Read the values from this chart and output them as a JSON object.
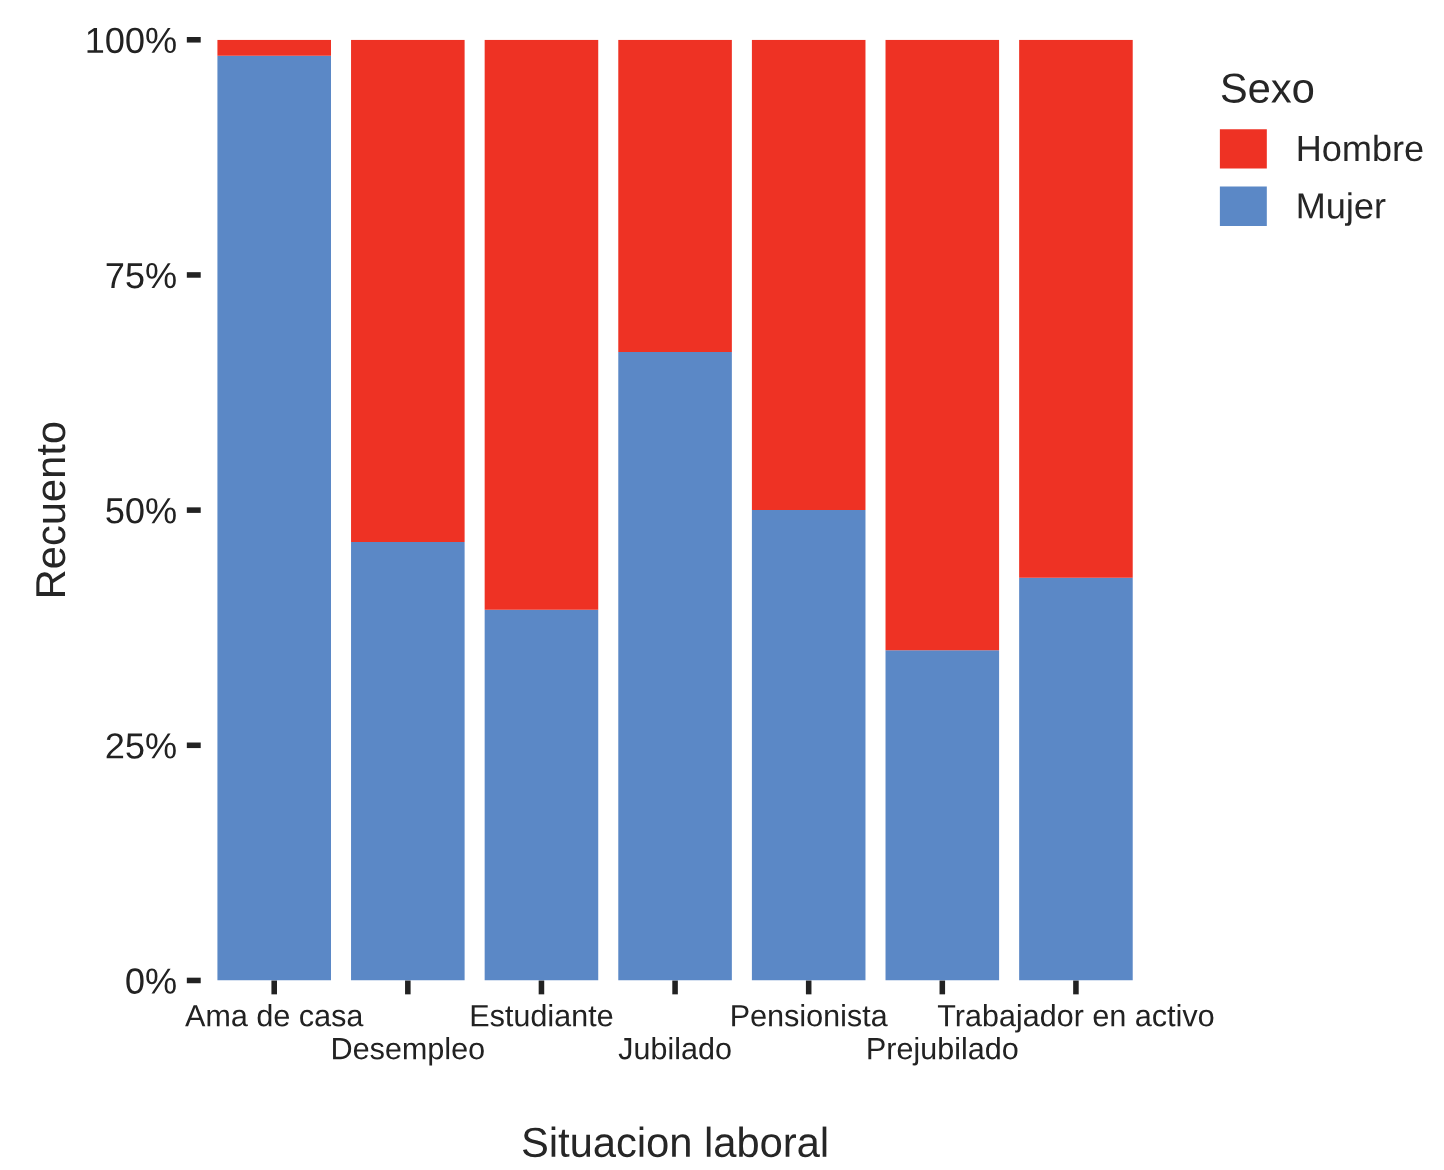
{
  "chart_data": {
    "type": "bar",
    "stacked": true,
    "xlabel": "Situacion laboral",
    "ylabel": "Recuento",
    "legend_title": "Sexo",
    "legend": "right",
    "categories": [
      "Ama de casa",
      "Desempleo",
      "Estudiante",
      "Jubilado",
      "Pensionista",
      "Prejubilado",
      "Trabajador en activo"
    ],
    "series": [
      {
        "name": "Mujer",
        "color": "#5b88c6",
        "values": [
          98.3,
          46.6,
          39.4,
          66.8,
          50,
          35.1,
          42.8
        ]
      },
      {
        "name": "Hombre",
        "color": "#ee3224",
        "values": [
          1.7,
          53.4,
          60.6,
          33.2,
          50,
          64.9,
          57.2
        ]
      }
    ],
    "ylim": [
      0,
      100
    ],
    "yticks": [
      {
        "value": 0,
        "label": "0%"
      },
      {
        "value": 25,
        "label": "25%"
      },
      {
        "value": 50,
        "label": "50%"
      },
      {
        "value": 75,
        "label": "75%"
      },
      {
        "value": 100,
        "label": "100%"
      }
    ],
    "grid": false
  }
}
